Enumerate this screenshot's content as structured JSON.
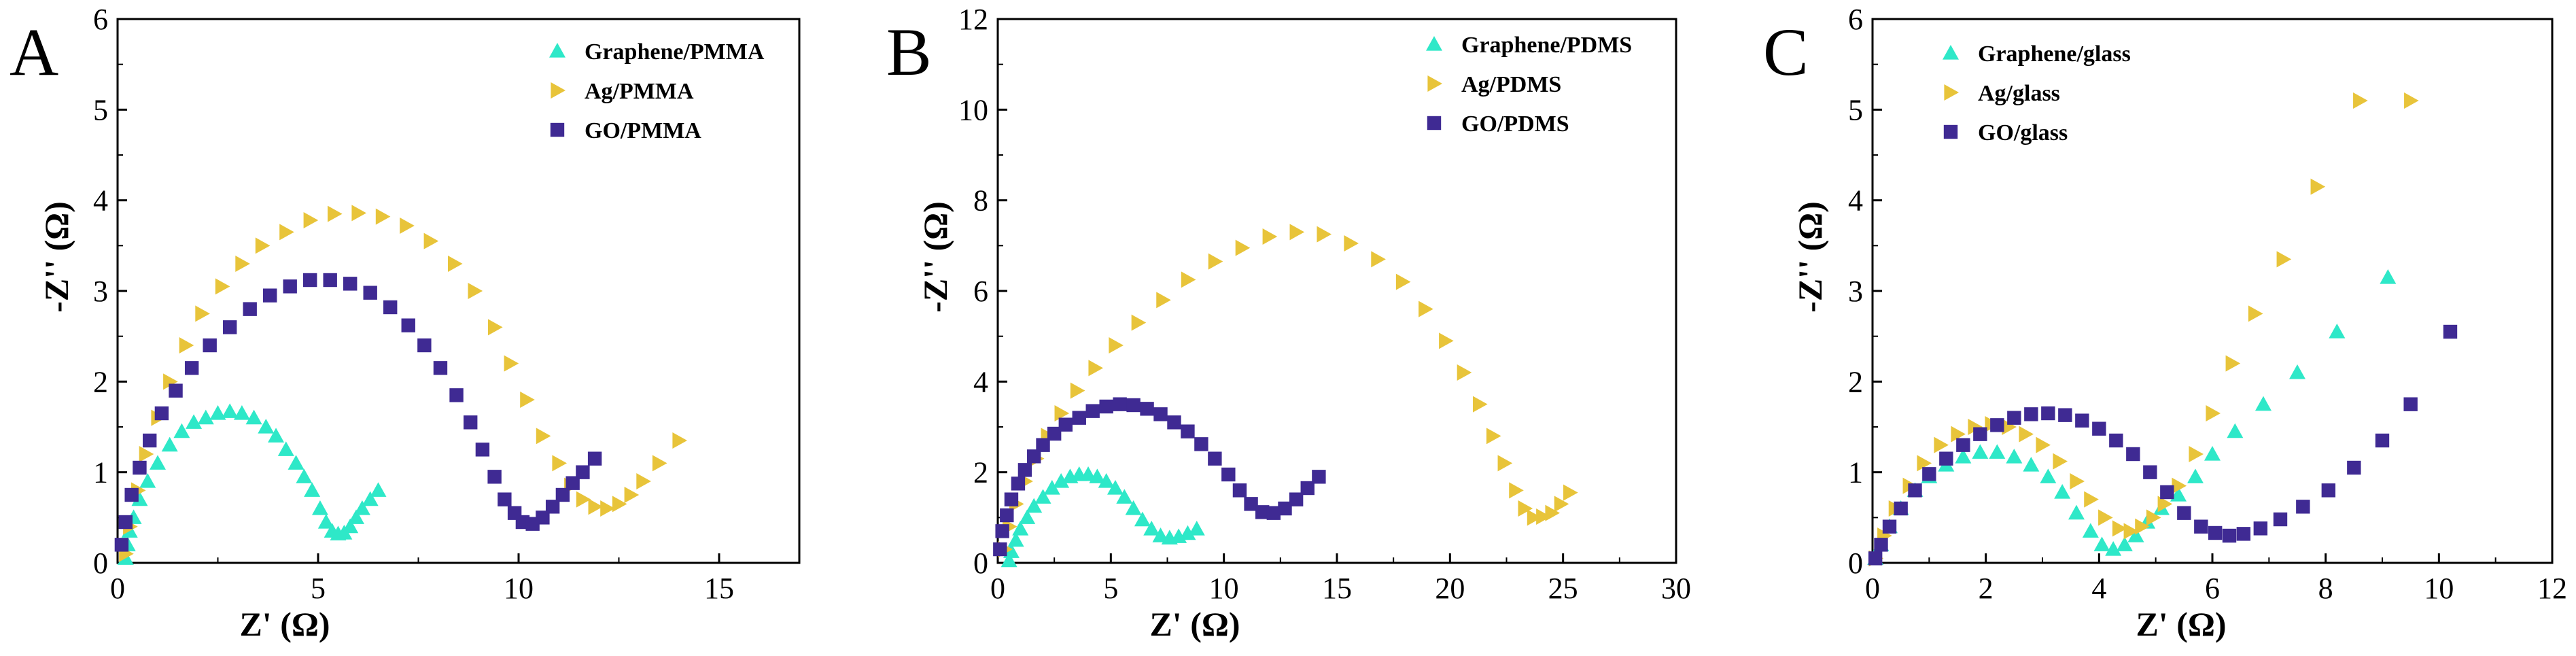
{
  "colors": {
    "graphene": "#2EE8C8",
    "ag": "#E8C43A",
    "go": "#3F2A93",
    "axis": "#000000"
  },
  "chart_data": [
    {
      "type": "scatter",
      "panel": "A",
      "xlabel": "Z' (Ω)",
      "ylabel": "-Z'' (Ω)",
      "xlim": [
        0,
        17
      ],
      "ylim": [
        0,
        6
      ],
      "xticks": [
        "0",
        "5",
        "10",
        "15"
      ],
      "yticks": [
        "0",
        "1",
        "2",
        "3",
        "4",
        "5",
        "6"
      ],
      "xtick_values": [
        0,
        5,
        10,
        15
      ],
      "ytick_values": [
        0,
        1,
        2,
        3,
        4,
        5,
        6
      ],
      "legend_position": "top-right",
      "series": [
        {
          "name": "Graphene/PMMA",
          "marker": "triangle-up",
          "color": "#2EE8C8",
          "x": [
            0.2,
            0.25,
            0.3,
            0.4,
            0.55,
            0.75,
            1.0,
            1.3,
            1.6,
            1.9,
            2.2,
            2.5,
            2.8,
            3.1,
            3.4,
            3.7,
            3.95,
            4.2,
            4.45,
            4.65,
            4.85,
            5.05,
            5.2,
            5.35,
            5.5,
            5.65,
            5.8,
            5.95,
            6.1,
            6.3,
            6.5
          ],
          "y": [
            0.05,
            0.2,
            0.35,
            0.5,
            0.7,
            0.9,
            1.1,
            1.3,
            1.45,
            1.55,
            1.6,
            1.65,
            1.67,
            1.65,
            1.6,
            1.5,
            1.4,
            1.25,
            1.1,
            0.95,
            0.8,
            0.6,
            0.45,
            0.35,
            0.32,
            0.33,
            0.4,
            0.5,
            0.6,
            0.7,
            0.8
          ]
        },
        {
          "name": "Ag/PMMA",
          "marker": "triangle-right",
          "color": "#E8C43A",
          "x": [
            0.2,
            0.3,
            0.5,
            0.7,
            1.0,
            1.3,
            1.7,
            2.1,
            2.6,
            3.1,
            3.6,
            4.2,
            4.8,
            5.4,
            6.0,
            6.6,
            7.2,
            7.8,
            8.4,
            8.9,
            9.4,
            9.8,
            10.2,
            10.6,
            11.0,
            11.3,
            11.6,
            11.9,
            12.2,
            12.5,
            12.8,
            13.1,
            13.5,
            14.0
          ],
          "y": [
            0.1,
            0.4,
            0.8,
            1.2,
            1.6,
            2.0,
            2.4,
            2.75,
            3.05,
            3.3,
            3.5,
            3.65,
            3.78,
            3.85,
            3.86,
            3.82,
            3.72,
            3.55,
            3.3,
            3.0,
            2.6,
            2.2,
            1.8,
            1.4,
            1.1,
            0.85,
            0.7,
            0.62,
            0.6,
            0.65,
            0.75,
            0.9,
            1.1,
            1.35
          ]
        },
        {
          "name": "GO/PMMA",
          "marker": "square",
          "color": "#3F2A93",
          "x": [
            0.1,
            0.2,
            0.35,
            0.55,
            0.8,
            1.1,
            1.45,
            1.85,
            2.3,
            2.8,
            3.3,
            3.8,
            4.3,
            4.8,
            5.3,
            5.8,
            6.3,
            6.8,
            7.25,
            7.65,
            8.05,
            8.45,
            8.8,
            9.1,
            9.4,
            9.65,
            9.9,
            10.1,
            10.35,
            10.6,
            10.85,
            11.1,
            11.35,
            11.6,
            11.9
          ],
          "y": [
            0.2,
            0.45,
            0.75,
            1.05,
            1.35,
            1.65,
            1.9,
            2.15,
            2.4,
            2.6,
            2.8,
            2.95,
            3.05,
            3.12,
            3.12,
            3.08,
            2.98,
            2.82,
            2.62,
            2.4,
            2.15,
            1.85,
            1.55,
            1.25,
            0.95,
            0.7,
            0.55,
            0.45,
            0.43,
            0.5,
            0.62,
            0.75,
            0.88,
            1.0,
            1.15
          ]
        }
      ]
    },
    {
      "type": "scatter",
      "panel": "B",
      "xlabel": "Z' (Ω)",
      "ylabel": "-Z'' (Ω)",
      "xlim": [
        0,
        30
      ],
      "ylim": [
        0,
        12
      ],
      "xticks": [
        "0",
        "5",
        "10",
        "15",
        "20",
        "25",
        "30"
      ],
      "yticks": [
        "0",
        "2",
        "4",
        "6",
        "8",
        "10",
        "12"
      ],
      "xtick_values": [
        0,
        5,
        10,
        15,
        20,
        25,
        30
      ],
      "ytick_values": [
        0,
        2,
        4,
        6,
        8,
        10,
        12
      ],
      "legend_position": "top-right",
      "series": [
        {
          "name": "Graphene/PDMS",
          "marker": "triangle-up",
          "color": "#2EE8C8",
          "x": [
            0.5,
            0.6,
            0.8,
            1.0,
            1.3,
            1.6,
            2.0,
            2.4,
            2.8,
            3.2,
            3.6,
            4.0,
            4.4,
            4.8,
            5.2,
            5.6,
            6.0,
            6.4,
            6.8,
            7.2,
            7.6,
            8.0,
            8.4,
            8.8
          ],
          "y": [
            0.05,
            0.25,
            0.5,
            0.75,
            1.0,
            1.25,
            1.45,
            1.65,
            1.8,
            1.9,
            1.95,
            1.95,
            1.9,
            1.8,
            1.65,
            1.45,
            1.2,
            0.95,
            0.75,
            0.6,
            0.55,
            0.58,
            0.65,
            0.75
          ]
        },
        {
          "name": "Ag/PDMS",
          "marker": "triangle-right",
          "color": "#E8C43A",
          "x": [
            0.3,
            0.5,
            0.8,
            1.2,
            1.7,
            2.2,
            2.8,
            3.5,
            4.3,
            5.2,
            6.2,
            7.3,
            8.4,
            9.6,
            10.8,
            12.0,
            13.2,
            14.4,
            15.6,
            16.8,
            17.9,
            18.9,
            19.8,
            20.6,
            21.3,
            21.9,
            22.4,
            22.9,
            23.3,
            23.7,
            24.1,
            24.5,
            24.9,
            25.3
          ],
          "y": [
            0.3,
            0.8,
            1.3,
            1.8,
            2.3,
            2.8,
            3.3,
            3.8,
            4.3,
            4.8,
            5.3,
            5.8,
            6.25,
            6.65,
            6.95,
            7.2,
            7.3,
            7.25,
            7.05,
            6.7,
            6.2,
            5.6,
            4.9,
            4.2,
            3.5,
            2.8,
            2.2,
            1.6,
            1.2,
            1.0,
            1.02,
            1.1,
            1.3,
            1.55
          ]
        },
        {
          "name": "GO/PDMS",
          "marker": "square",
          "color": "#3F2A93",
          "x": [
            0.1,
            0.2,
            0.4,
            0.6,
            0.9,
            1.2,
            1.6,
            2.0,
            2.5,
            3.0,
            3.6,
            4.2,
            4.8,
            5.4,
            6.0,
            6.6,
            7.2,
            7.8,
            8.4,
            9.0,
            9.6,
            10.2,
            10.7,
            11.2,
            11.7,
            12.2,
            12.7,
            13.2,
            13.7,
            14.2
          ],
          "y": [
            0.3,
            0.7,
            1.05,
            1.4,
            1.75,
            2.05,
            2.35,
            2.6,
            2.85,
            3.05,
            3.2,
            3.35,
            3.45,
            3.5,
            3.48,
            3.4,
            3.28,
            3.1,
            2.9,
            2.62,
            2.3,
            1.95,
            1.6,
            1.3,
            1.12,
            1.1,
            1.2,
            1.4,
            1.65,
            1.9
          ]
        }
      ]
    },
    {
      "type": "scatter",
      "panel": "C",
      "xlabel": "Z' (Ω)",
      "ylabel": "-Z'' (Ω)",
      "xlim": [
        0,
        12
      ],
      "ylim": [
        0,
        6
      ],
      "xticks": [
        "0",
        "2",
        "4",
        "6",
        "8",
        "10",
        "12"
      ],
      "yticks": [
        "0",
        "1",
        "2",
        "3",
        "4",
        "5",
        "6"
      ],
      "xtick_values": [
        0,
        2,
        4,
        6,
        8,
        10,
        12
      ],
      "ytick_values": [
        0,
        1,
        2,
        3,
        4,
        5,
        6
      ],
      "legend_position": "top-left",
      "series": [
        {
          "name": "Graphene/glass",
          "marker": "triangle-up",
          "color": "#2EE8C8",
          "x": [
            0.05,
            0.15,
            0.3,
            0.5,
            0.75,
            1.0,
            1.3,
            1.6,
            1.9,
            2.2,
            2.5,
            2.8,
            3.1,
            3.35,
            3.6,
            3.85,
            4.05,
            4.25,
            4.45,
            4.65,
            4.85,
            5.1,
            5.4,
            5.7,
            6.0,
            6.4,
            6.9,
            7.5,
            8.2,
            9.1
          ],
          "y": [
            0.05,
            0.2,
            0.4,
            0.6,
            0.8,
            0.95,
            1.08,
            1.17,
            1.22,
            1.22,
            1.17,
            1.08,
            0.95,
            0.78,
            0.55,
            0.35,
            0.2,
            0.15,
            0.2,
            0.3,
            0.45,
            0.6,
            0.75,
            0.95,
            1.2,
            1.45,
            1.75,
            2.1,
            2.55,
            3.15
          ]
        },
        {
          "name": "Ag/glass",
          "marker": "triangle-right",
          "color": "#E8C43A",
          "x": [
            0.05,
            0.2,
            0.4,
            0.65,
            0.9,
            1.2,
            1.5,
            1.8,
            2.1,
            2.4,
            2.7,
            3.0,
            3.3,
            3.6,
            3.85,
            4.1,
            4.35,
            4.55,
            4.75,
            4.95,
            5.15,
            5.4,
            5.7,
            6.0,
            6.35,
            6.75,
            7.25,
            7.85,
            8.6,
            9.5
          ],
          "y": [
            0.05,
            0.3,
            0.6,
            0.85,
            1.1,
            1.3,
            1.42,
            1.5,
            1.53,
            1.5,
            1.42,
            1.3,
            1.12,
            0.9,
            0.7,
            0.5,
            0.38,
            0.35,
            0.4,
            0.5,
            0.65,
            0.85,
            1.2,
            1.65,
            2.2,
            2.75,
            3.35,
            4.15,
            5.1,
            5.1
          ]
        },
        {
          "name": "GO/glass",
          "marker": "square",
          "color": "#3F2A93",
          "x": [
            0.05,
            0.15,
            0.3,
            0.5,
            0.75,
            1.0,
            1.3,
            1.6,
            1.9,
            2.2,
            2.5,
            2.8,
            3.1,
            3.4,
            3.7,
            4.0,
            4.3,
            4.6,
            4.9,
            5.2,
            5.5,
            5.8,
            6.05,
            6.3,
            6.55,
            6.85,
            7.2,
            7.6,
            8.05,
            8.5,
            9.0,
            9.5,
            10.2
          ],
          "y": [
            0.05,
            0.2,
            0.4,
            0.6,
            0.8,
            0.98,
            1.15,
            1.3,
            1.42,
            1.52,
            1.6,
            1.64,
            1.65,
            1.63,
            1.57,
            1.48,
            1.35,
            1.2,
            1.0,
            0.78,
            0.55,
            0.4,
            0.33,
            0.3,
            0.32,
            0.38,
            0.48,
            0.62,
            0.8,
            1.05,
            1.35,
            1.75,
            2.55
          ]
        }
      ]
    }
  ]
}
